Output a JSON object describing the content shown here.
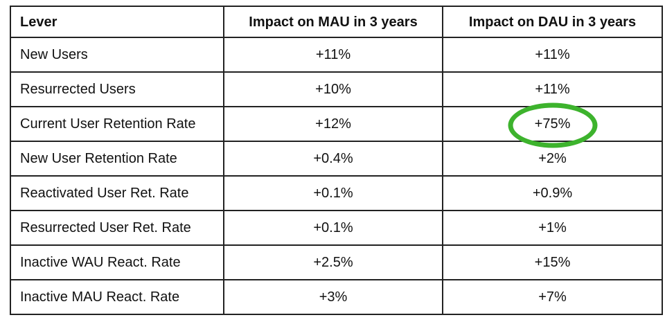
{
  "colors": {
    "background": "#ffffff",
    "table_border": "#222222",
    "text": "#111111",
    "annotation_green": "#3db32d"
  },
  "table": {
    "columns": {
      "lever": "Lever",
      "mau": "Impact on MAU in 3 years",
      "dau": "Impact on DAU in 3 years"
    },
    "rows": [
      {
        "lever": "New Users",
        "mau": "+11%",
        "dau": "+11%"
      },
      {
        "lever": "Resurrected Users",
        "mau": "+10%",
        "dau": "+11%"
      },
      {
        "lever": "Current User Retention Rate",
        "mau": "+12%",
        "dau": "+75%"
      },
      {
        "lever": "New User Retention Rate",
        "mau": "+0.4%",
        "dau": "+2%"
      },
      {
        "lever": "Reactivated User Ret. Rate",
        "mau": "+0.1%",
        "dau": "+0.9%"
      },
      {
        "lever": "Resurrected User Ret. Rate",
        "mau": "+0.1%",
        "dau": "+1%"
      },
      {
        "lever": "Inactive WAU React. Rate",
        "mau": "+2.5%",
        "dau": "+15%"
      },
      {
        "lever": "Inactive MAU React. Rate",
        "mau": "+3%",
        "dau": "+7%"
      }
    ],
    "annotation": {
      "shape": "ellipse",
      "color": "#3db32d",
      "circled_row": "Current User Retention Rate",
      "circled_column": "Impact on DAU in 3 years",
      "circled_value": "+75%"
    }
  }
}
